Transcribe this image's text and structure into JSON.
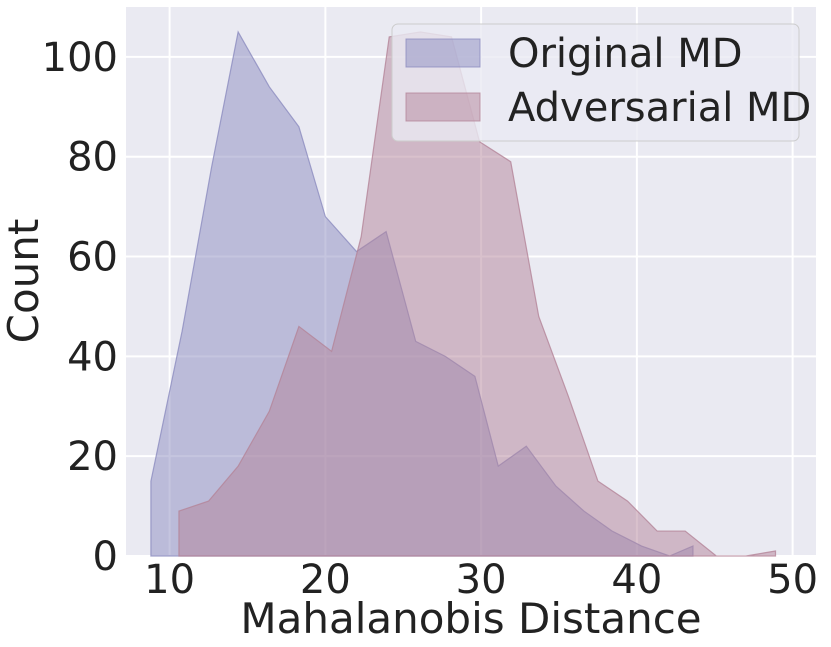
{
  "chart_data": {
    "type": "area",
    "xlabel": "Mahalanobis Distance",
    "ylabel": "Count",
    "xlim": [
      7.2,
      51.5
    ],
    "ylim": [
      0,
      110
    ],
    "xticks": [
      10,
      20,
      30,
      40,
      50
    ],
    "yticks": [
      0,
      20,
      40,
      60,
      80,
      100
    ],
    "grid": true,
    "legend_position": "top-right",
    "colors": {
      "background": "#eaeaf2",
      "grid": "#ffffff",
      "text": "#222222"
    },
    "series": [
      {
        "name": "Original MD",
        "color": "#8c8cbf",
        "x": [
          8.8,
          10.8,
          12.7,
          14.4,
          16.4,
          18.3,
          20.0,
          22.0,
          23.9,
          25.8,
          27.7,
          29.6,
          31.1,
          32.9,
          34.8,
          36.6,
          38.4,
          40.3,
          42.1,
          43.6
        ],
        "values": [
          15,
          45,
          78,
          105,
          94,
          86,
          68,
          61,
          65,
          43,
          40,
          36,
          18,
          22,
          14,
          9,
          5,
          2,
          0,
          2
        ]
      },
      {
        "name": "Adversarial MD",
        "color": "#b48499",
        "x": [
          10.6,
          12.5,
          14.4,
          16.4,
          18.3,
          20.4,
          22.3,
          24.1,
          26.1,
          28.1,
          29.9,
          31.9,
          33.7,
          35.6,
          37.5,
          39.4,
          41.3,
          43.1,
          45.1,
          47.0,
          48.9
        ],
        "values": [
          9,
          11,
          18,
          29,
          46,
          41,
          64,
          104,
          105,
          104,
          83,
          79,
          48,
          32,
          15,
          11,
          5,
          5,
          0,
          0,
          1
        ]
      }
    ]
  }
}
